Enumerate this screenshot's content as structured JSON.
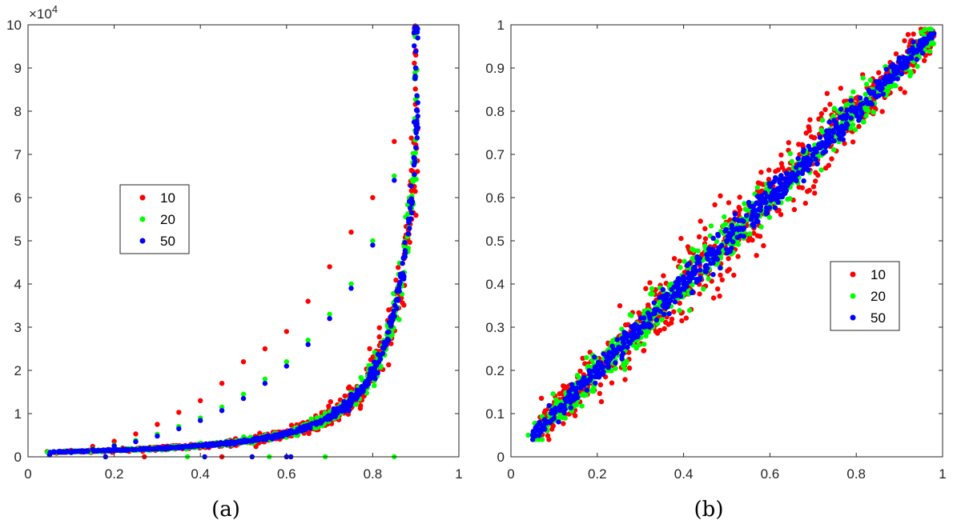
{
  "chart_data": [
    {
      "type": "scatter",
      "caption": "(a)",
      "exponent_label": "×10",
      "exponent_power": "4",
      "xlim": [
        0,
        1
      ],
      "ylim": [
        0,
        100000
      ],
      "xticks": [
        0,
        0.2,
        0.4,
        0.6,
        0.8,
        1
      ],
      "xtick_labels": [
        "0",
        "0.2",
        "0.4",
        "0.6",
        "0.8",
        "1"
      ],
      "yticks": [
        0,
        10000,
        20000,
        30000,
        40000,
        50000,
        60000,
        70000,
        80000,
        90000,
        100000
      ],
      "ytick_labels": [
        "0",
        "1",
        "2",
        "3",
        "4",
        "5",
        "6",
        "7",
        "8",
        "9",
        "10"
      ],
      "legend_position": "middle-left",
      "trend": "y ≈ 1000/(1-x)^1.85, clipped at 100000",
      "series": [
        {
          "name": "10",
          "color": "#ff0000",
          "points": [
            [
              0.05,
              700
            ],
            [
              0.1,
              1500
            ],
            [
              0.15,
              2400
            ],
            [
              0.2,
              3600
            ],
            [
              0.25,
              5300
            ],
            [
              0.3,
              7500
            ],
            [
              0.35,
              10300
            ],
            [
              0.4,
              13000
            ],
            [
              0.45,
              17000
            ],
            [
              0.5,
              22000
            ],
            [
              0.55,
              25000
            ],
            [
              0.6,
              29000
            ],
            [
              0.65,
              36000
            ],
            [
              0.7,
              44000
            ],
            [
              0.75,
              52000
            ],
            [
              0.8,
              60000
            ],
            [
              0.85,
              73000
            ],
            [
              0.9,
              93000
            ],
            [
              0.27,
              0
            ],
            [
              0.45,
              0
            ]
          ]
        },
        {
          "name": "20",
          "color": "#00ff00",
          "points": [
            [
              0.05,
              500
            ],
            [
              0.1,
              1100
            ],
            [
              0.15,
              1800
            ],
            [
              0.2,
              2700
            ],
            [
              0.25,
              3800
            ],
            [
              0.3,
              5200
            ],
            [
              0.35,
              7000
            ],
            [
              0.4,
              9000
            ],
            [
              0.45,
              11500
            ],
            [
              0.5,
              14500
            ],
            [
              0.55,
              18000
            ],
            [
              0.6,
              22000
            ],
            [
              0.65,
              27000
            ],
            [
              0.7,
              33000
            ],
            [
              0.75,
              40000
            ],
            [
              0.8,
              50000
            ],
            [
              0.85,
              65000
            ],
            [
              0.9,
              88000
            ],
            [
              0.37,
              0
            ],
            [
              0.56,
              0
            ],
            [
              0.69,
              0
            ],
            [
              0.85,
              0
            ]
          ]
        },
        {
          "name": "50",
          "color": "#0000ff",
          "points": [
            [
              0.05,
              450
            ],
            [
              0.1,
              1000
            ],
            [
              0.15,
              1700
            ],
            [
              0.2,
              2500
            ],
            [
              0.25,
              3500
            ],
            [
              0.3,
              4800
            ],
            [
              0.35,
              6500
            ],
            [
              0.4,
              8400
            ],
            [
              0.45,
              10700
            ],
            [
              0.5,
              13500
            ],
            [
              0.55,
              17000
            ],
            [
              0.6,
              21000
            ],
            [
              0.65,
              26000
            ],
            [
              0.7,
              32000
            ],
            [
              0.75,
              39000
            ],
            [
              0.8,
              49000
            ],
            [
              0.85,
              64000
            ],
            [
              0.9,
              90000
            ],
            [
              0.18,
              0
            ],
            [
              0.41,
              0
            ],
            [
              0.52,
              0
            ],
            [
              0.6,
              0
            ],
            [
              0.61,
              0
            ]
          ]
        }
      ]
    },
    {
      "type": "scatter",
      "caption": "(b)",
      "xlim": [
        0,
        1
      ],
      "ylim": [
        0,
        1
      ],
      "xticks": [
        0,
        0.2,
        0.4,
        0.6,
        0.8,
        1
      ],
      "xtick_labels": [
        "0",
        "0.2",
        "0.4",
        "0.6",
        "0.8",
        "1"
      ],
      "yticks": [
        0,
        0.1,
        0.2,
        0.3,
        0.4,
        0.5,
        0.6,
        0.7,
        0.8,
        0.9,
        1
      ],
      "ytick_labels": [
        "0",
        "0.1",
        "0.2",
        "0.3",
        "0.4",
        "0.5",
        "0.6",
        "0.7",
        "0.8",
        "0.9",
        "1"
      ],
      "legend_position": "middle-right",
      "trend": "y ≈ x",
      "series": [
        {
          "name": "10",
          "color": "#ff0000",
          "points": [
            [
              0.05,
              0.05
            ],
            [
              0.1,
              0.1
            ],
            [
              0.2,
              0.2
            ],
            [
              0.3,
              0.3
            ],
            [
              0.4,
              0.41
            ],
            [
              0.5,
              0.5
            ],
            [
              0.6,
              0.6
            ],
            [
              0.7,
              0.7
            ],
            [
              0.8,
              0.8
            ],
            [
              0.9,
              0.9
            ],
            [
              0.98,
              0.98
            ]
          ]
        },
        {
          "name": "20",
          "color": "#00ff00",
          "points": [
            [
              0.04,
              0.05
            ],
            [
              0.1,
              0.1
            ],
            [
              0.2,
              0.2
            ],
            [
              0.3,
              0.3
            ],
            [
              0.4,
              0.4
            ],
            [
              0.5,
              0.5
            ],
            [
              0.6,
              0.6
            ],
            [
              0.7,
              0.7
            ],
            [
              0.8,
              0.8
            ],
            [
              0.9,
              0.9
            ],
            [
              0.98,
              0.98
            ]
          ]
        },
        {
          "name": "50",
          "color": "#0000ff",
          "points": [
            [
              0.05,
              0.05
            ],
            [
              0.1,
              0.1
            ],
            [
              0.2,
              0.2
            ],
            [
              0.3,
              0.3
            ],
            [
              0.4,
              0.4
            ],
            [
              0.5,
              0.5
            ],
            [
              0.6,
              0.6
            ],
            [
              0.7,
              0.7
            ],
            [
              0.8,
              0.8
            ],
            [
              0.9,
              0.9
            ],
            [
              0.98,
              0.98
            ]
          ]
        }
      ]
    }
  ]
}
